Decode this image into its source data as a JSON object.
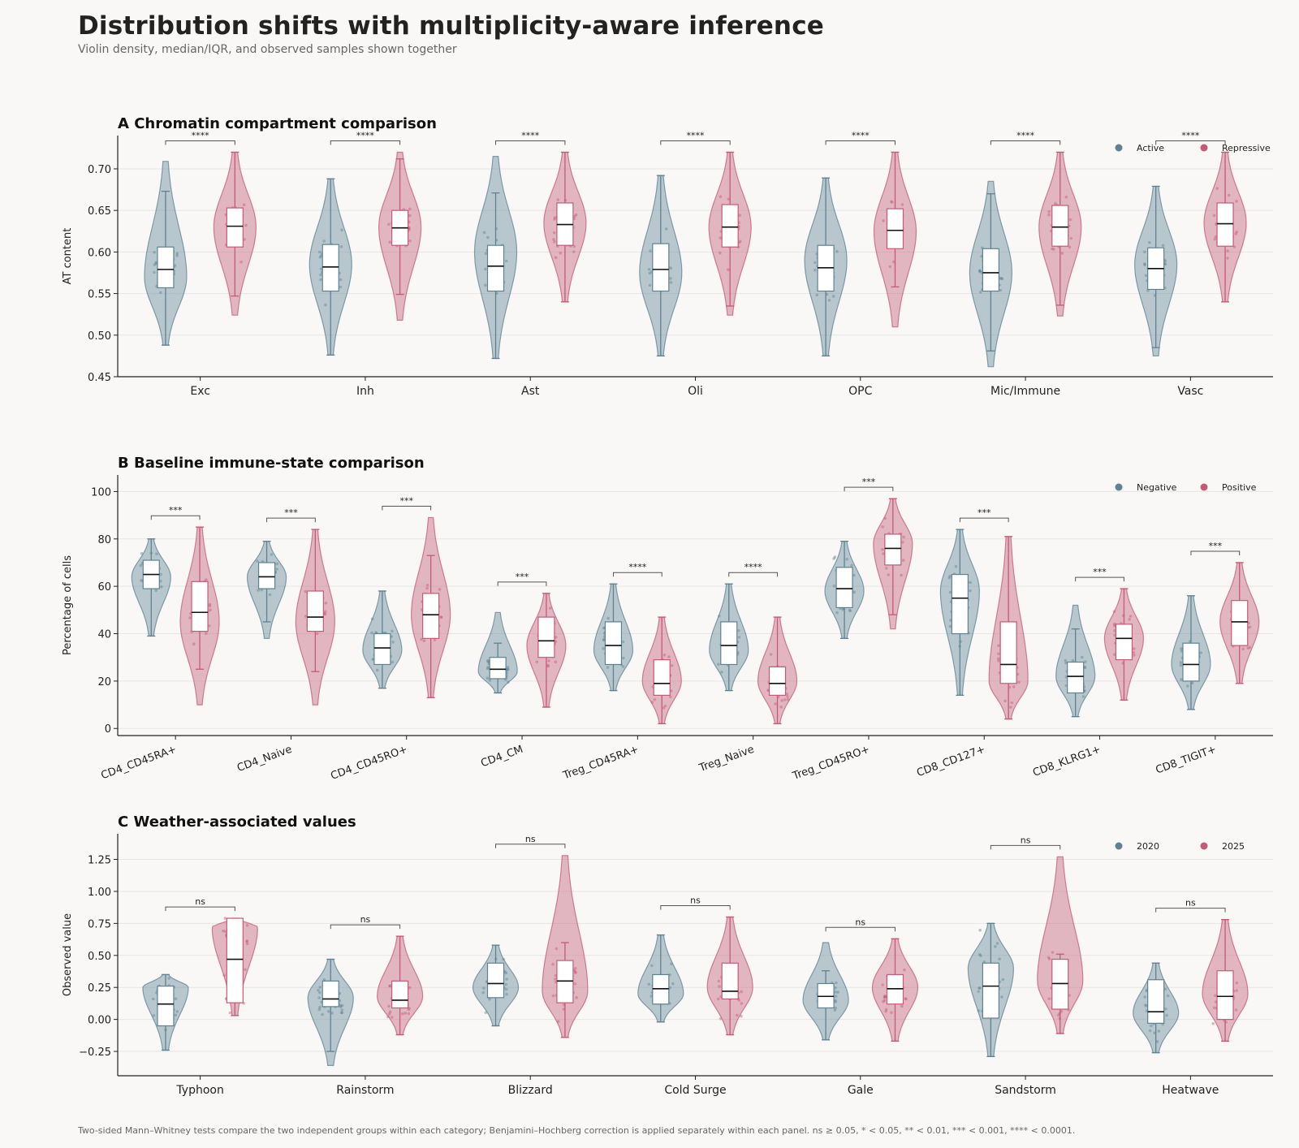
{
  "header": {
    "title": "Distribution shifts with multiplicity-aware inference",
    "subtitle": "Violin density, median/IQR, and observed samples shown together"
  },
  "footnote": "Two-sided Mann–Whitney tests compare the two independent groups within each category; Benjamini–Hochberg correction is applied separately within each panel. ns ≥ 0.05, * < 0.05, ** < 0.01, *** < 0.001, **** < 0.0001.",
  "colors": {
    "group_a": "#5f8293",
    "group_b": "#c45a78",
    "grid": "#e6e6e6",
    "axis": "#222222"
  },
  "chart_data": [
    {
      "type": "violin",
      "panel": "A",
      "title": "A  Chromatin compartment comparison",
      "ylabel": "AT content",
      "xlabel": "",
      "ylim": [
        0.45,
        0.74
      ],
      "yticks": [
        0.45,
        0.5,
        0.55,
        0.6,
        0.65,
        0.7
      ],
      "ytick_labels": [
        "0.45",
        "0.50",
        "0.55",
        "0.60",
        "0.65",
        "0.70"
      ],
      "grid": true,
      "legend_position": "top-right",
      "tilt_labels": false,
      "series_names": [
        "Active",
        "Repressive"
      ],
      "categories": [
        "Exc",
        "Inh",
        "Ast",
        "Oli",
        "OPC",
        "Mic/Immune",
        "Vasc"
      ],
      "significance": [
        "****",
        "****",
        "****",
        "****",
        "****",
        "****",
        "****"
      ],
      "groups": [
        [
          {
            "min": 0.488,
            "max": 0.709,
            "q1": 0.557,
            "median": 0.579,
            "q3": 0.606,
            "wlo": 0.488,
            "whi": 0.673,
            "mode": 0.57
          },
          {
            "min": 0.524,
            "max": 0.72,
            "q1": 0.606,
            "median": 0.631,
            "q3": 0.653,
            "wlo": 0.547,
            "whi": 0.72,
            "mode": 0.63
          }
        ],
        [
          {
            "min": 0.476,
            "max": 0.688,
            "q1": 0.553,
            "median": 0.582,
            "q3": 0.609,
            "wlo": 0.476,
            "whi": 0.688,
            "mode": 0.585
          },
          {
            "min": 0.518,
            "max": 0.72,
            "q1": 0.608,
            "median": 0.629,
            "q3": 0.65,
            "wlo": 0.549,
            "whi": 0.712,
            "mode": 0.63
          }
        ],
        [
          {
            "min": 0.472,
            "max": 0.715,
            "q1": 0.553,
            "median": 0.583,
            "q3": 0.608,
            "wlo": 0.472,
            "whi": 0.671,
            "mode": 0.6
          },
          {
            "min": 0.54,
            "max": 0.72,
            "q1": 0.608,
            "median": 0.633,
            "q3": 0.659,
            "wlo": 0.54,
            "whi": 0.72,
            "mode": 0.635
          }
        ],
        [
          {
            "min": 0.475,
            "max": 0.692,
            "q1": 0.553,
            "median": 0.579,
            "q3": 0.61,
            "wlo": 0.475,
            "whi": 0.692,
            "mode": 0.575
          },
          {
            "min": 0.524,
            "max": 0.72,
            "q1": 0.606,
            "median": 0.63,
            "q3": 0.657,
            "wlo": 0.535,
            "whi": 0.72,
            "mode": 0.63
          }
        ],
        [
          {
            "min": 0.475,
            "max": 0.689,
            "q1": 0.553,
            "median": 0.581,
            "q3": 0.608,
            "wlo": 0.475,
            "whi": 0.689,
            "mode": 0.59
          },
          {
            "min": 0.51,
            "max": 0.72,
            "q1": 0.604,
            "median": 0.626,
            "q3": 0.652,
            "wlo": 0.558,
            "whi": 0.72,
            "mode": 0.625
          }
        ],
        [
          {
            "min": 0.462,
            "max": 0.685,
            "q1": 0.553,
            "median": 0.575,
            "q3": 0.604,
            "wlo": 0.481,
            "whi": 0.67,
            "mode": 0.575
          },
          {
            "min": 0.523,
            "max": 0.72,
            "q1": 0.607,
            "median": 0.63,
            "q3": 0.656,
            "wlo": 0.536,
            "whi": 0.72,
            "mode": 0.63
          }
        ],
        [
          {
            "min": 0.475,
            "max": 0.679,
            "q1": 0.555,
            "median": 0.58,
            "q3": 0.605,
            "wlo": 0.485,
            "whi": 0.679,
            "mode": 0.585
          },
          {
            "min": 0.54,
            "max": 0.72,
            "q1": 0.607,
            "median": 0.634,
            "q3": 0.659,
            "wlo": 0.54,
            "whi": 0.72,
            "mode": 0.635
          }
        ]
      ]
    },
    {
      "type": "violin",
      "panel": "B",
      "title": "B  Baseline immune-state comparison",
      "ylabel": "Percentage of cells",
      "xlabel": "",
      "ylim": [
        -3,
        107
      ],
      "yticks": [
        0,
        20,
        40,
        60,
        80,
        100
      ],
      "ytick_labels": [
        "0",
        "20",
        "40",
        "60",
        "80",
        "100"
      ],
      "grid": true,
      "legend_position": "top-right",
      "tilt_labels": true,
      "series_names": [
        "Negative",
        "Positive"
      ],
      "categories": [
        "CD4_CD45RA+",
        "CD4_Naive",
        "CD4_CD45RO+",
        "CD4_CM",
        "Treg_CD45RA+",
        "Treg_Naive",
        "Treg_CD45RO+",
        "CD8_CD127+",
        "CD8_KLRG1+",
        "CD8_TIGIT+"
      ],
      "significance": [
        "***",
        "***",
        "***",
        "***",
        "****",
        "****",
        "***",
        "***",
        "***",
        "***"
      ],
      "groups": [
        [
          {
            "min": 39,
            "max": 80,
            "q1": 59,
            "median": 65,
            "q3": 71,
            "wlo": 39,
            "whi": 80,
            "mode": 64
          },
          {
            "min": 10,
            "max": 85,
            "q1": 41,
            "median": 49,
            "q3": 62,
            "wlo": 25,
            "whi": 85,
            "mode": 45
          }
        ],
        [
          {
            "min": 38,
            "max": 79,
            "q1": 59,
            "median": 64,
            "q3": 70,
            "wlo": 45,
            "whi": 79,
            "mode": 64
          },
          {
            "min": 10,
            "max": 84,
            "q1": 41,
            "median": 47,
            "q3": 58,
            "wlo": 24,
            "whi": 84,
            "mode": 45
          }
        ],
        [
          {
            "min": 17,
            "max": 58,
            "q1": 27,
            "median": 34,
            "q3": 40,
            "wlo": 17,
            "whi": 58,
            "mode": 33
          },
          {
            "min": 13,
            "max": 89,
            "q1": 38,
            "median": 48,
            "q3": 57,
            "wlo": 13,
            "whi": 73,
            "mode": 48
          }
        ],
        [
          {
            "min": 15,
            "max": 49,
            "q1": 21,
            "median": 25,
            "q3": 30,
            "wlo": 15,
            "whi": 36,
            "mode": 24
          },
          {
            "min": 9,
            "max": 57,
            "q1": 30,
            "median": 37,
            "q3": 47,
            "wlo": 9,
            "whi": 57,
            "mode": 35
          }
        ],
        [
          {
            "min": 16,
            "max": 61,
            "q1": 27,
            "median": 35,
            "q3": 45,
            "wlo": 16,
            "whi": 61,
            "mode": 33
          },
          {
            "min": 2,
            "max": 47,
            "q1": 14,
            "median": 19,
            "q3": 29,
            "wlo": 2,
            "whi": 47,
            "mode": 20
          }
        ],
        [
          {
            "min": 16,
            "max": 61,
            "q1": 27,
            "median": 35,
            "q3": 45,
            "wlo": 16,
            "whi": 61,
            "mode": 33
          },
          {
            "min": 2,
            "max": 47,
            "q1": 14,
            "median": 19,
            "q3": 26,
            "wlo": 2,
            "whi": 47,
            "mode": 20
          }
        ],
        [
          {
            "min": 38,
            "max": 79,
            "q1": 51,
            "median": 59,
            "q3": 68,
            "wlo": 38,
            "whi": 79,
            "mode": 58
          },
          {
            "min": 42,
            "max": 97,
            "q1": 69,
            "median": 76,
            "q3": 82,
            "wlo": 48,
            "whi": 97,
            "mode": 78
          }
        ],
        [
          {
            "min": 14,
            "max": 84,
            "q1": 40,
            "median": 55,
            "q3": 65,
            "wlo": 14,
            "whi": 84,
            "mode": 58
          },
          {
            "min": 4,
            "max": 81,
            "q1": 19,
            "median": 27,
            "q3": 45,
            "wlo": 4,
            "whi": 81,
            "mode": 20
          }
        ],
        [
          {
            "min": 5,
            "max": 52,
            "q1": 15,
            "median": 22,
            "q3": 28,
            "wlo": 5,
            "whi": 42,
            "mode": 22
          },
          {
            "min": 12,
            "max": 59,
            "q1": 29,
            "median": 38,
            "q3": 44,
            "wlo": 12,
            "whi": 59,
            "mode": 38
          }
        ],
        [
          {
            "min": 8,
            "max": 56,
            "q1": 20,
            "median": 27,
            "q3": 36,
            "wlo": 8,
            "whi": 56,
            "mode": 27
          },
          {
            "min": 19,
            "max": 70,
            "q1": 35,
            "median": 45,
            "q3": 54,
            "wlo": 19,
            "whi": 70,
            "mode": 45
          }
        ]
      ]
    },
    {
      "type": "violin",
      "panel": "C",
      "title": "C  Weather-associated values",
      "ylabel": "Observed value",
      "xlabel": "",
      "ylim": [
        -0.44,
        1.45
      ],
      "yticks": [
        -0.25,
        0.0,
        0.25,
        0.5,
        0.75,
        1.0,
        1.25
      ],
      "ytick_labels": [
        "−0.25",
        "0.00",
        "0.25",
        "0.50",
        "0.75",
        "1.00",
        "1.25"
      ],
      "grid": true,
      "legend_position": "top-right",
      "tilt_labels": false,
      "series_names": [
        "2020",
        "2025"
      ],
      "categories": [
        "Typhoon",
        "Rainstorm",
        "Blizzard",
        "Cold Surge",
        "Gale",
        "Sandstorm",
        "Heatwave"
      ],
      "significance": [
        "ns",
        "ns",
        "ns",
        "ns",
        "ns",
        "ns",
        "ns"
      ],
      "groups": [
        [
          {
            "min": -0.24,
            "max": 0.35,
            "q1": -0.05,
            "median": 0.12,
            "q3": 0.26,
            "wlo": -0.24,
            "whi": 0.35,
            "mode": 0.25
          },
          {
            "min": 0.03,
            "max": 0.79,
            "q1": 0.13,
            "median": 0.47,
            "q3": 0.79,
            "wlo": 0.03,
            "whi": 0.79,
            "mode": 0.72
          }
        ],
        [
          {
            "min": -0.36,
            "max": 0.47,
            "q1": 0.1,
            "median": 0.16,
            "q3": 0.3,
            "wlo": -0.25,
            "whi": 0.47,
            "mode": 0.17
          },
          {
            "min": -0.12,
            "max": 0.65,
            "q1": 0.09,
            "median": 0.15,
            "q3": 0.3,
            "wlo": -0.12,
            "whi": 0.65,
            "mode": 0.18
          }
        ],
        [
          {
            "min": -0.05,
            "max": 0.58,
            "q1": 0.17,
            "median": 0.28,
            "q3": 0.44,
            "wlo": -0.05,
            "whi": 0.58,
            "mode": 0.25
          },
          {
            "min": -0.14,
            "max": 1.28,
            "q1": 0.13,
            "median": 0.3,
            "q3": 0.46,
            "wlo": -0.14,
            "whi": 0.6,
            "mode": 0.22
          }
        ],
        [
          {
            "min": -0.02,
            "max": 0.66,
            "q1": 0.12,
            "median": 0.24,
            "q3": 0.35,
            "wlo": -0.02,
            "whi": 0.66,
            "mode": 0.2
          },
          {
            "min": -0.12,
            "max": 0.8,
            "q1": 0.16,
            "median": 0.22,
            "q3": 0.44,
            "wlo": -0.12,
            "whi": 0.8,
            "mode": 0.25
          }
        ],
        [
          {
            "min": -0.16,
            "max": 0.6,
            "q1": 0.09,
            "median": 0.18,
            "q3": 0.28,
            "wlo": -0.16,
            "whi": 0.38,
            "mode": 0.15
          },
          {
            "min": -0.17,
            "max": 0.63,
            "q1": 0.12,
            "median": 0.24,
            "q3": 0.35,
            "wlo": -0.17,
            "whi": 0.63,
            "mode": 0.25
          }
        ],
        [
          {
            "min": -0.29,
            "max": 0.75,
            "q1": 0.01,
            "median": 0.26,
            "q3": 0.44,
            "wlo": -0.29,
            "whi": 0.75,
            "mode": 0.4
          },
          {
            "min": -0.11,
            "max": 1.27,
            "q1": 0.08,
            "median": 0.28,
            "q3": 0.47,
            "wlo": -0.11,
            "whi": 0.51,
            "mode": 0.3
          }
        ],
        [
          {
            "min": -0.26,
            "max": 0.44,
            "q1": -0.03,
            "median": 0.06,
            "q3": 0.31,
            "wlo": -0.26,
            "whi": 0.44,
            "mode": 0.05
          },
          {
            "min": -0.17,
            "max": 0.78,
            "q1": 0.0,
            "median": 0.18,
            "q3": 0.38,
            "wlo": -0.17,
            "whi": 0.78,
            "mode": 0.2
          }
        ]
      ]
    }
  ]
}
